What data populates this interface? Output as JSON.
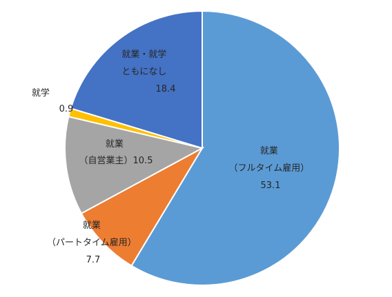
{
  "chart_data": {
    "type": "pie",
    "start_angle_deg": 0,
    "direction": "clockwise",
    "slices": [
      {
        "label_lines": [
          "就業",
          "（フルタイム雇用）"
        ],
        "value": 53.1,
        "value_text": "53.1",
        "color": "#5B9BD5"
      },
      {
        "label_lines": [
          "就業",
          "（パートタイム雇用）"
        ],
        "value": 7.7,
        "value_text": "7.7",
        "color": "#ED7D31"
      },
      {
        "label_lines": [
          "就業",
          "（自営業主）10.5"
        ],
        "value": 10.5,
        "value_text": "",
        "color": "#A5A5A5"
      },
      {
        "label_lines": [
          "就学"
        ],
        "value": 0.9,
        "value_text": "0.9",
        "color": "#FFC000"
      },
      {
        "label_lines": [
          "就業・就学",
          "ともになし"
        ],
        "value": 18.4,
        "value_text": "18.4",
        "color": "#4472C4"
      }
    ]
  }
}
